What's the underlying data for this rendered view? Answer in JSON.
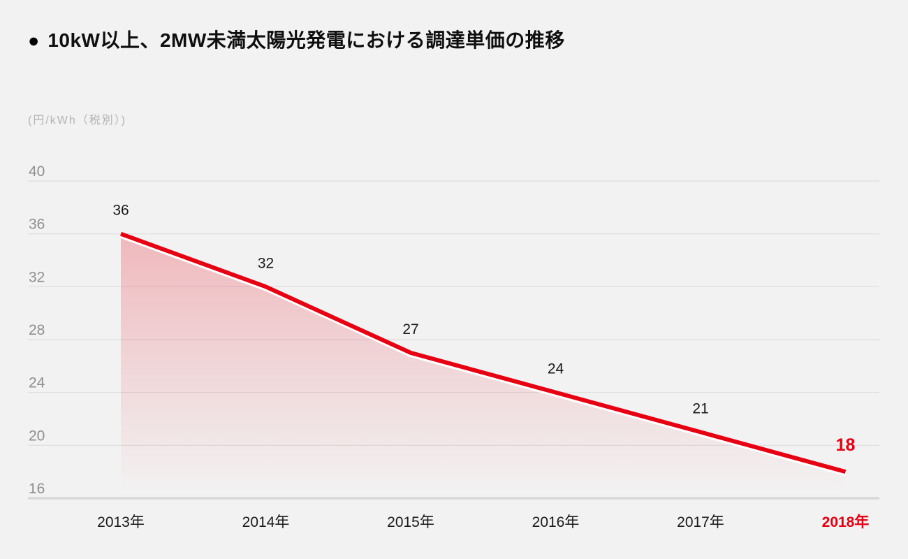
{
  "header": {
    "bullet": "●",
    "title": "10kW以上、2MW未満太陽光発電における調達単価の推移"
  },
  "chart_data": {
    "type": "line",
    "title": "10kW以上、2MW未満太陽光発電における調達単価の推移",
    "ylabel": "(円/kWh（税別）)",
    "categories": [
      "2013年",
      "2014年",
      "2015年",
      "2016年",
      "2017年",
      "2018年"
    ],
    "values": [
      36,
      32,
      27,
      24,
      21,
      18
    ],
    "yticks": [
      40,
      36,
      32,
      28,
      24,
      20,
      16
    ],
    "ylim": [
      16,
      40
    ],
    "grid": true,
    "legend": "none",
    "highlight_last": true,
    "colors": {
      "line": "#e60012",
      "line_underlay": "#ffffff",
      "area_top": "rgba(230,0,18,0.24)",
      "area_bottom": "rgba(230,0,18,0)",
      "background": "#f2f2f2",
      "gridline": "#e0e0e0",
      "axis_line": "#d8d8d8",
      "tick_label": "#8e8e8e",
      "category_label": "#1a1a1a",
      "data_label": "#1a1a1a",
      "highlight": "#e60012"
    }
  }
}
